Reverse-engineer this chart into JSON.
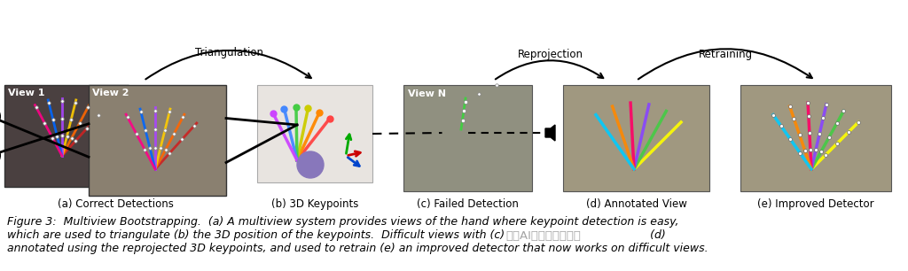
{
  "bg_color": "#ffffff",
  "subcaptions": [
    "(a) Correct Detections",
    "(b) 3D Keypoints",
    "(c) Failed Detection",
    "(d) Annotated View",
    "(e) Improved Detector"
  ],
  "arrow_labels": [
    "Triangulation",
    "Reprojection",
    "Retraining"
  ],
  "view_labels": [
    "View 1",
    "View 2",
    "View N"
  ],
  "caption_line1": "Figure 3:  Multiview Bootstrapping.  (a) A multiview system provides views of the hand where keypoint detection is easy,",
  "caption_line2": "which are used to triangulate (b) the 3D position of the keypoints.  Difficult views with (c)                                         (d)",
  "caption_line3": "annotated using the reprojected 3D keypoints, and used to retrain (e) an improved detector that now works on difficult views.",
  "font_size_caption": 9.0,
  "font_size_subcaption": 8.5,
  "font_size_view": 8.0,
  "font_size_arrow": 8.5,
  "view1_color": "#4a4040",
  "view2_color": "#8a8070",
  "panel_b_color": "#e8e4e0",
  "panel_c_color": "#909080",
  "panel_d_color": "#a09880",
  "panel_e_color": "#a09880",
  "watermark_text": "以爱AI学算法，加油！"
}
